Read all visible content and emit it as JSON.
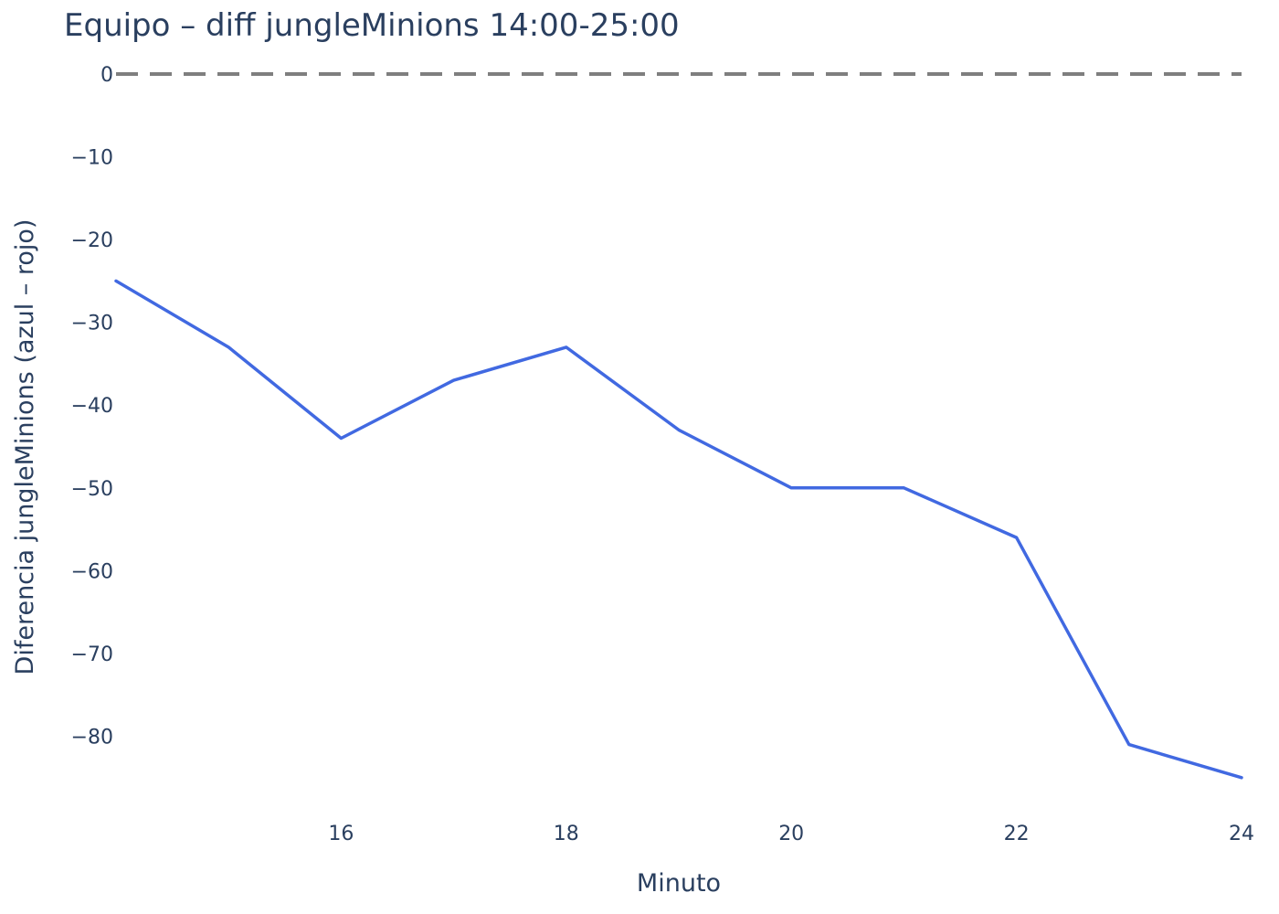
{
  "chart_data": {
    "type": "line",
    "title": "Equipo – diff jungleMinions 14:00-25:00",
    "xlabel": "Minuto",
    "ylabel": "Diferencia jungleMinions (azul – rojo)",
    "xlim": [
      14,
      24
    ],
    "ylim": [
      -89,
      0
    ],
    "x_ticks": [
      16,
      18,
      20,
      22,
      24
    ],
    "y_ticks": [
      0,
      -10,
      -20,
      -30,
      -40,
      -50,
      -60,
      -70,
      -80
    ],
    "x_tick_labels": [
      "16",
      "18",
      "20",
      "22",
      "24"
    ],
    "y_tick_labels": [
      "0",
      "−10",
      "−20",
      "−30",
      "−40",
      "−50",
      "−60",
      "−70",
      "−80"
    ],
    "grid": false,
    "reference_line": {
      "y": 0,
      "style": "dashed",
      "color": "#7f7f7f"
    },
    "series": [
      {
        "color": "#4169e1",
        "x": [
          14,
          15,
          16,
          17,
          18,
          19,
          20,
          21,
          22,
          23,
          24
        ],
        "y": [
          -25,
          -33,
          -44,
          -37,
          -33,
          -43,
          -50,
          -50,
          -56,
          -81,
          -85
        ]
      }
    ]
  }
}
